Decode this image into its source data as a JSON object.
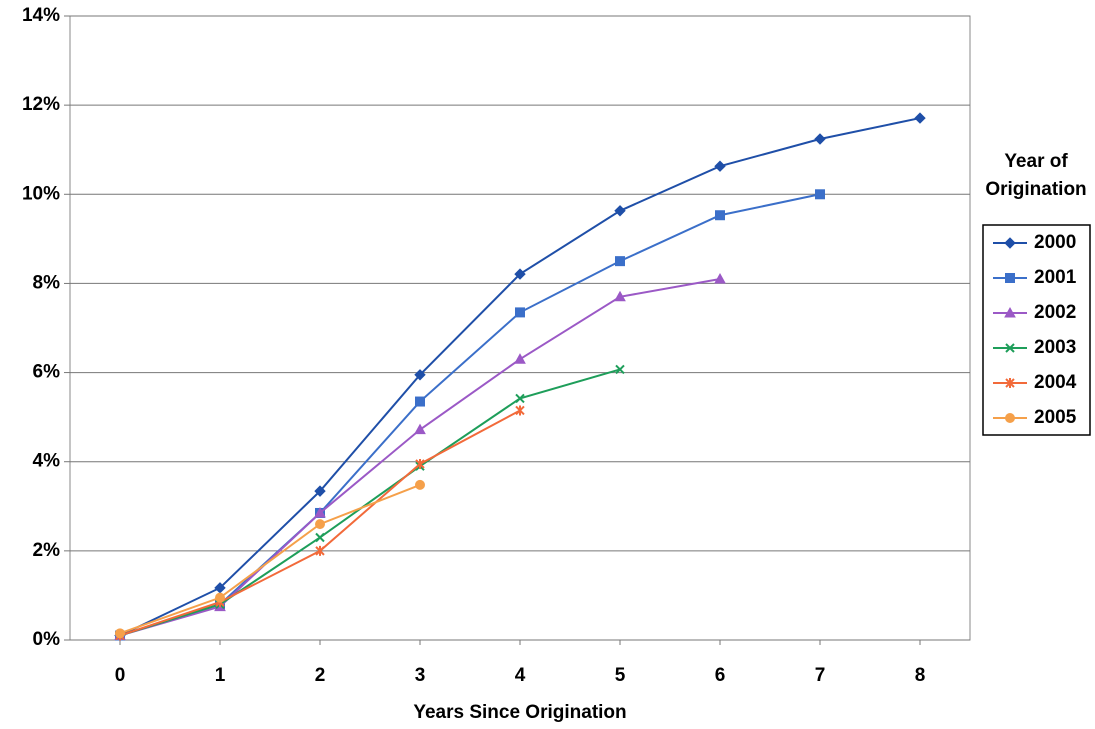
{
  "chart_data": {
    "type": "line",
    "x_label": "Years Since Origination",
    "legend_title": [
      "Year of",
      "Origination"
    ],
    "x": [
      0,
      1,
      2,
      3,
      4,
      5,
      6,
      7,
      8
    ],
    "xlim": [
      -0.5,
      8.5
    ],
    "xticks": [
      0,
      1,
      2,
      3,
      4,
      5,
      6,
      7,
      8
    ],
    "ylim": [
      0,
      14
    ],
    "yticks": [
      {
        "value": 0,
        "label": "0%"
      },
      {
        "value": 2,
        "label": "2%"
      },
      {
        "value": 4,
        "label": "4%"
      },
      {
        "value": 6,
        "label": "6%"
      },
      {
        "value": 8,
        "label": "8%"
      },
      {
        "value": 10,
        "label": "10%"
      },
      {
        "value": 12,
        "label": "12%"
      },
      {
        "value": 14,
        "label": "14%"
      }
    ],
    "grid": true,
    "legend": "right",
    "series": [
      {
        "name": "2000",
        "color": "#1f4fa8",
        "marker": "diamond",
        "values": [
          0.1,
          1.17,
          3.34,
          5.95,
          8.21,
          9.63,
          10.63,
          11.24,
          11.71
        ]
      },
      {
        "name": "2001",
        "color": "#3b6fc9",
        "marker": "square",
        "values": [
          0.1,
          0.8,
          2.85,
          5.35,
          7.35,
          8.5,
          9.53,
          10.0,
          null
        ]
      },
      {
        "name": "2002",
        "color": "#9b59c6",
        "marker": "triangle",
        "values": [
          0.1,
          0.75,
          2.85,
          4.72,
          6.3,
          7.7,
          8.1,
          null,
          null
        ]
      },
      {
        "name": "2003",
        "color": "#1e9e5a",
        "marker": "cross",
        "values": [
          0.1,
          0.8,
          2.3,
          3.9,
          5.42,
          6.07,
          null,
          null,
          null
        ]
      },
      {
        "name": "2004",
        "color": "#f26a3a",
        "marker": "star",
        "values": [
          0.1,
          0.85,
          2.0,
          3.95,
          5.15,
          null,
          null,
          null,
          null
        ]
      },
      {
        "name": "2005",
        "color": "#f5a04a",
        "marker": "circle",
        "values": [
          0.15,
          0.95,
          2.6,
          3.48,
          null,
          null,
          null,
          null,
          null
        ]
      }
    ]
  }
}
